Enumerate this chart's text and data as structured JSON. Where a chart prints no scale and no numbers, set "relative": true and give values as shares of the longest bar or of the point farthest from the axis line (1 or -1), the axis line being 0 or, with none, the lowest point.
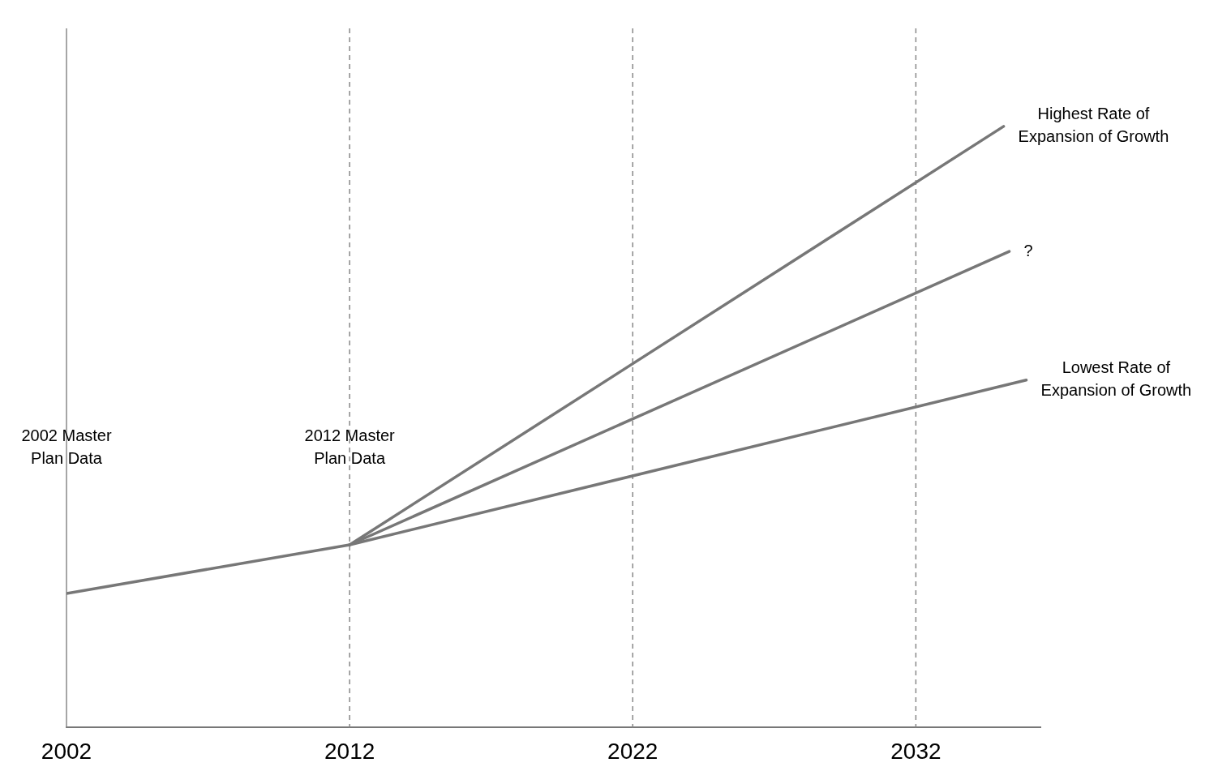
{
  "chart_data": {
    "type": "line",
    "relative": true,
    "grid": "x",
    "legend": false,
    "marker": "none",
    "line_style": "solid",
    "xlim": [
      2002,
      2036.4
    ],
    "xticks": [
      2002,
      2012,
      2022,
      2032
    ],
    "series": [
      {
        "name": "Highest Rate of Expansion of Growth",
        "color": "#777777",
        "x": [
          2012,
          2035.1
        ],
        "values": [
          0.304,
          1
        ]
      },
      {
        "name": "?",
        "color": "#777777",
        "x": [
          2002,
          2012,
          2035.3
        ],
        "values": [
          0.223,
          0.304,
          0.792
        ]
      },
      {
        "name": "Lowest Rate of Expansion of Growth",
        "color": "#777777",
        "x": [
          2012,
          2035.9
        ],
        "values": [
          0.304,
          0.578
        ]
      }
    ],
    "annotations": [
      "2002 Master Plan Data",
      "2012 Master Plan Data"
    ]
  }
}
